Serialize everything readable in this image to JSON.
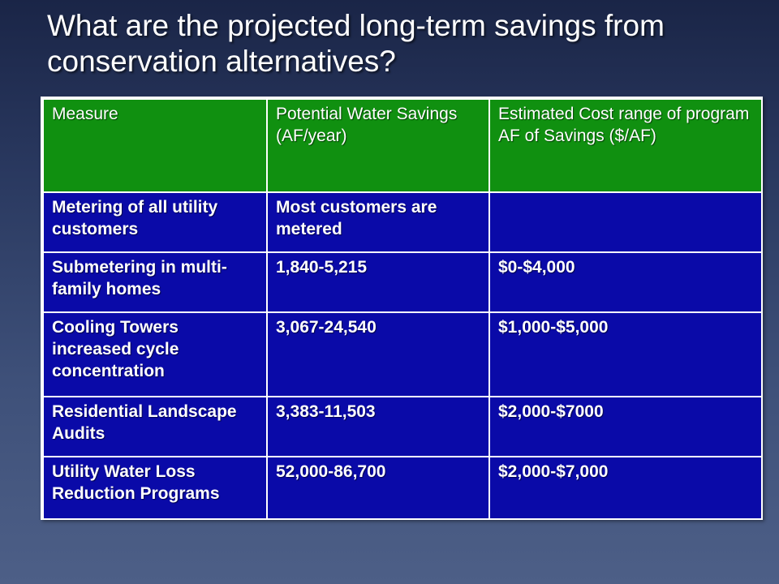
{
  "slide": {
    "title": "What are the projected long-term savings from conservation alternatives?"
  },
  "colors": {
    "header_background": "#109010",
    "row_background": "#0a0aa8",
    "text": "#ffffff",
    "slide_background": "#2a3960"
  },
  "table": {
    "headers": [
      "Measure",
      "Potential Water Savings (AF/year)",
      "Estimated Cost range of program AF of Savings ($/AF)"
    ],
    "rows": [
      {
        "measure": "Metering of all utility customers",
        "savings": "Most customers are metered",
        "cost": ""
      },
      {
        "measure": "Submetering in multi-family homes",
        "savings": "1,840-5,215",
        "cost": "$0-$4,000"
      },
      {
        "measure": "Cooling Towers increased cycle concentration",
        "savings": "3,067-24,540",
        "cost": "$1,000-$5,000"
      },
      {
        "measure": "Residential Landscape Audits",
        "savings": "3,383-11,503",
        "cost": "$2,000-$7000"
      },
      {
        "measure": "Utility Water Loss Reduction Programs",
        "savings": "52,000-86,700",
        "cost": "$2,000-$7,000"
      }
    ]
  }
}
